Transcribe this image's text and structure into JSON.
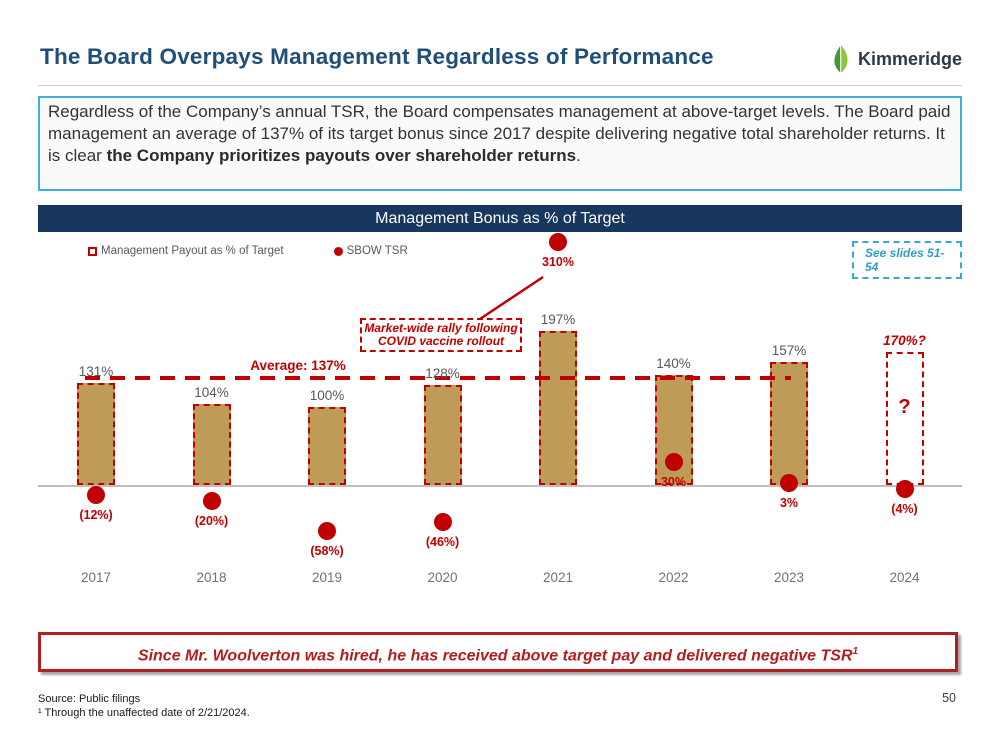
{
  "header": {
    "title": "The Board Overpays Management Regardless of Performance",
    "logo_text": "Kimmeridge"
  },
  "intro": {
    "text_regular": "Regardless of the Company’s annual TSR, the Board compensates management at above-target levels. The Board paid management an average of 137% of its target bonus since 2017 despite delivering negative total shareholder returns. It is clear ",
    "text_bold": "the Company prioritizes payouts over shareholder returns",
    "text_end": "."
  },
  "chart": {
    "see_slides_note": "See slides 51-54",
    "unknown_marker": "?",
    "legend": [
      {
        "label": "Management Payout as % of Target"
      },
      {
        "label": "SBOW TSR"
      }
    ]
  },
  "chart_data": {
    "type": "bar",
    "title": "Management Bonus as % of Target",
    "categories": [
      "2017",
      "2018",
      "2019",
      "2020",
      "2021",
      "2022",
      "2023",
      "2024"
    ],
    "series": [
      {
        "name": "Management Payout as % of Target",
        "unit": "%",
        "values": [
          131,
          104,
          100,
          128,
          197,
          140,
          157,
          170
        ],
        "labels": [
          "131%",
          "104%",
          "100%",
          "128%",
          "197%",
          "140%",
          "157%",
          "170%?"
        ]
      },
      {
        "name": "SBOW TSR",
        "unit": "%",
        "values": [
          -12,
          -20,
          -58,
          -46,
          310,
          30,
          3,
          -4
        ],
        "labels": [
          "(12%)",
          "(20%)",
          "(58%)",
          "(46%)",
          "310%",
          "30%",
          "3%",
          "(4%)"
        ]
      }
    ],
    "projected_index": 7,
    "average_line": {
      "value": 137,
      "label": "Average: 137%"
    },
    "annotation": {
      "line1": "Market-wide rally following",
      "line2": "COVID vaccine rollout",
      "target": "2021 SBOW TSR 310%"
    },
    "ylim": [
      -70,
      320
    ],
    "grid": false,
    "legend_position": "top-left"
  },
  "callout": {
    "text": "Since Mr. Woolverton was hired, he has received above target pay and delivered negative TSR",
    "superscript": "1"
  },
  "footer": {
    "source": "Source: Public filings",
    "footnote": "¹ Through the unaffected date of 2/21/2024.",
    "page_number": "50"
  },
  "colors": {
    "accent_red": "#C00000",
    "bar_fill": "#BF9B58",
    "navy_header": "#17375E",
    "title_blue": "#1F4E79",
    "cyan_border": "#41AFD9",
    "teal_note": "#2E9FC0",
    "dark_red": "#B02020",
    "logo_green_dark": "#3F9C35",
    "logo_green_light": "#8CC63F"
  }
}
